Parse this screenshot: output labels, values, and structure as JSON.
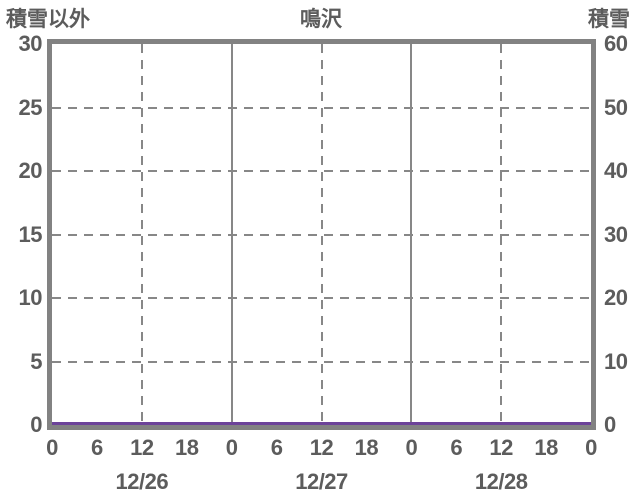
{
  "header": {
    "left_label": "積雪以外",
    "center_label": "鳴沢",
    "right_label": "積雪"
  },
  "colors": {
    "text": "#5c5c5c",
    "plot_border": "#828282",
    "gridline": "#878787",
    "series_line": "#6c4399",
    "background": "#ffffff"
  },
  "chart_data": {
    "type": "line",
    "title": "鳴沢",
    "left_axis": {
      "title": "積雪以外",
      "range": [
        0,
        30
      ],
      "ticks": [
        0,
        5,
        10,
        15,
        20,
        25,
        30
      ]
    },
    "right_axis": {
      "title": "積雪",
      "range": [
        0,
        60
      ],
      "ticks": [
        0,
        10,
        20,
        30,
        40,
        50,
        60
      ]
    },
    "x_axis": {
      "total_hours": 72,
      "hour_tick_step": 6,
      "hour_tick_labels": [
        "0",
        "6",
        "12",
        "18",
        "0",
        "6",
        "12",
        "18",
        "0",
        "6",
        "12",
        "18",
        "0"
      ],
      "day_labels": [
        "12/26",
        "12/27",
        "12/28"
      ],
      "day_label_center_hours": [
        12,
        36,
        60
      ],
      "noon_dashed_line_hours": [
        12,
        36,
        60
      ],
      "midnight_solid_line_hours": [
        24,
        48
      ]
    },
    "grid": {
      "horizontal_dashed_at_left_ticks": [
        5,
        10,
        15,
        20,
        25
      ],
      "style": "dashed"
    },
    "legend": "none",
    "series": [
      {
        "name": "observed-line",
        "color": "#6c4399",
        "x_hours": [
          0,
          72
        ],
        "values": [
          0,
          0
        ],
        "constant_value": 0,
        "value_axis": "both (flat at zero)"
      }
    ]
  }
}
